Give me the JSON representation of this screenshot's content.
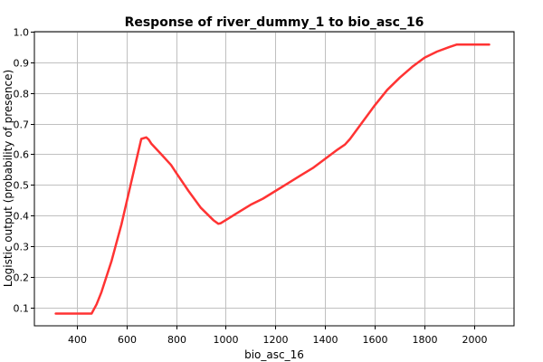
{
  "chart_data": {
    "type": "line",
    "title": "Response of river_dummy_1 to bio_asc_16",
    "xlabel": "bio_asc_16",
    "ylabel": "Logistic output (probability of presence)",
    "xlim": [
      230,
      2160
    ],
    "ylim": [
      0.04,
      1.0
    ],
    "x_ticks": [
      400,
      600,
      800,
      1000,
      1200,
      1400,
      1600,
      1800,
      2000
    ],
    "x_tick_labels": [
      "400",
      "600",
      "800",
      "1000",
      "1200",
      "1400",
      "1600",
      "1800",
      "2000"
    ],
    "y_ticks": [
      0.1,
      0.2,
      0.3,
      0.4,
      0.5,
      0.6,
      0.7,
      0.8,
      0.9,
      1.0
    ],
    "y_tick_labels": [
      "0.1",
      "0.2",
      "0.3",
      "0.4",
      "0.5",
      "0.6",
      "0.7",
      "0.8",
      "0.9",
      "1.0"
    ],
    "grid": true,
    "legend": "none",
    "series": [
      {
        "color": "#ff3333",
        "x": [
          316,
          350,
          400,
          460,
          480,
          500,
          520,
          540,
          560,
          580,
          600,
          620,
          640,
          660,
          680,
          690,
          700,
          740,
          780,
          800,
          850,
          900,
          950,
          970,
          980,
          1000,
          1050,
          1100,
          1150,
          1200,
          1250,
          1300,
          1350,
          1400,
          1450,
          1480,
          1500,
          1550,
          1600,
          1650,
          1700,
          1750,
          1800,
          1850,
          1900,
          1930,
          1950,
          2000,
          2060
        ],
        "y": [
          0.08,
          0.08,
          0.08,
          0.08,
          0.11,
          0.15,
          0.2,
          0.25,
          0.31,
          0.37,
          0.44,
          0.51,
          0.58,
          0.65,
          0.655,
          0.648,
          0.635,
          0.6,
          0.565,
          0.54,
          0.48,
          0.425,
          0.385,
          0.373,
          0.375,
          0.385,
          0.41,
          0.435,
          0.455,
          0.48,
          0.505,
          0.53,
          0.555,
          0.585,
          0.615,
          0.632,
          0.65,
          0.705,
          0.76,
          0.81,
          0.85,
          0.885,
          0.915,
          0.935,
          0.95,
          0.958,
          0.958,
          0.958,
          0.958
        ]
      }
    ]
  }
}
